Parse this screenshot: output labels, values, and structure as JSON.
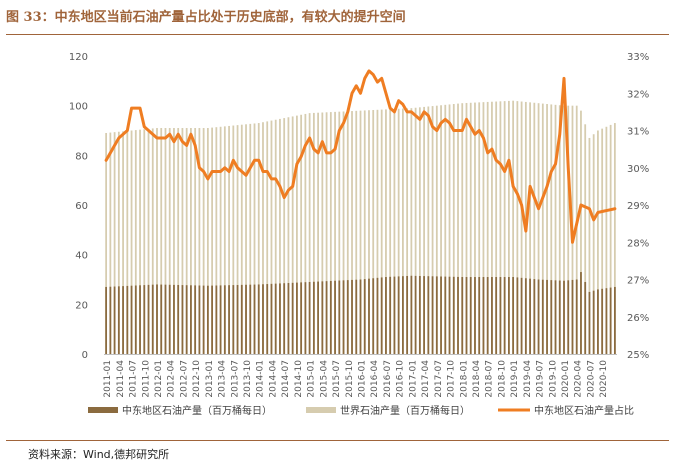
{
  "title": "图 33：中东地区当前石油产量占比处于历史底部，有较大的提升空间",
  "source": "资料来源：Wind,德邦研究所",
  "colors": {
    "title": "#a0643a",
    "middle_east": "#8b6b3f",
    "world": "#d6ccaf",
    "share": "#ef7d22",
    "axis_text": "#595959"
  },
  "chart_data": {
    "type": "bar+line",
    "title": "",
    "y_left": {
      "min": 0,
      "max": 120,
      "ticks": [
        0,
        20,
        40,
        60,
        80,
        100,
        120
      ]
    },
    "y_right": {
      "min": 25,
      "max": 33,
      "ticks": [
        "25%",
        "26%",
        "27%",
        "28%",
        "29%",
        "30%",
        "31%",
        "32%",
        "33%"
      ]
    },
    "tick_labels": [
      "2011-01",
      "2011-04",
      "2011-07",
      "2011-10",
      "2012-01",
      "2012-04",
      "2012-07",
      "2012-10",
      "2013-01",
      "2013-04",
      "2013-07",
      "2013-10",
      "2014-01",
      "2014-04",
      "2014-07",
      "2014-10",
      "2015-01",
      "2015-04",
      "2015-07",
      "2015-10",
      "2016-01",
      "2016-04",
      "2016-07",
      "2016-10",
      "2017-01",
      "2017-04",
      "2017-07",
      "2017-10",
      "2018-01",
      "2018-04",
      "2018-07",
      "2018-10",
      "2019-01",
      "2019-04",
      "2019-07",
      "2019-10",
      "2020-01",
      "2020-04",
      "2020-07",
      "2020-10"
    ],
    "months": 121,
    "middle_east_anchors": [
      [
        0,
        27
      ],
      [
        12,
        28
      ],
      [
        24,
        27.5
      ],
      [
        36,
        28
      ],
      [
        48,
        29
      ],
      [
        60,
        30
      ],
      [
        66,
        31
      ],
      [
        72,
        31.5
      ],
      [
        84,
        31
      ],
      [
        96,
        31
      ],
      [
        102,
        30
      ],
      [
        108,
        29.5
      ],
      [
        111,
        30
      ],
      [
        112,
        33
      ],
      [
        114,
        25
      ],
      [
        116,
        26
      ],
      [
        120,
        27
      ]
    ],
    "world_anchors": [
      [
        0,
        89
      ],
      [
        6,
        90
      ],
      [
        12,
        91
      ],
      [
        24,
        91
      ],
      [
        36,
        93
      ],
      [
        48,
        97
      ],
      [
        60,
        98
      ],
      [
        72,
        99
      ],
      [
        84,
        101
      ],
      [
        96,
        102
      ],
      [
        102,
        101
      ],
      [
        108,
        100
      ],
      [
        111,
        100
      ],
      [
        112,
        98
      ],
      [
        114,
        87
      ],
      [
        116,
        90
      ],
      [
        120,
        93
      ]
    ],
    "share_anchors": [
      [
        0,
        30.2
      ],
      [
        3,
        30.8
      ],
      [
        5,
        31.0
      ],
      [
        6,
        31.6
      ],
      [
        8,
        31.6
      ],
      [
        9,
        31.1
      ],
      [
        10,
        31.0
      ],
      [
        12,
        30.8
      ],
      [
        14,
        30.8
      ],
      [
        15,
        30.9
      ],
      [
        16,
        30.7
      ],
      [
        17,
        30.9
      ],
      [
        18,
        30.7
      ],
      [
        19,
        30.6
      ],
      [
        20,
        30.9
      ],
      [
        21,
        30.6
      ],
      [
        22,
        30.0
      ],
      [
        23,
        29.9
      ],
      [
        24,
        29.7
      ],
      [
        25,
        29.9
      ],
      [
        27,
        29.9
      ],
      [
        28,
        30.0
      ],
      [
        29,
        29.9
      ],
      [
        30,
        30.2
      ],
      [
        31,
        30.0
      ],
      [
        33,
        29.8
      ],
      [
        34,
        30.0
      ],
      [
        35,
        30.2
      ],
      [
        36,
        30.2
      ],
      [
        37,
        29.9
      ],
      [
        38,
        29.9
      ],
      [
        39,
        29.7
      ],
      [
        40,
        29.7
      ],
      [
        41,
        29.5
      ],
      [
        42,
        29.2
      ],
      [
        43,
        29.4
      ],
      [
        44,
        29.5
      ],
      [
        45,
        30.1
      ],
      [
        46,
        30.3
      ],
      [
        47,
        30.6
      ],
      [
        48,
        30.8
      ],
      [
        49,
        30.5
      ],
      [
        50,
        30.4
      ],
      [
        51,
        30.7
      ],
      [
        52,
        30.4
      ],
      [
        53,
        30.4
      ],
      [
        54,
        30.5
      ],
      [
        55,
        31.0
      ],
      [
        56,
        31.2
      ],
      [
        57,
        31.5
      ],
      [
        58,
        32.0
      ],
      [
        59,
        32.2
      ],
      [
        60,
        32.0
      ],
      [
        61,
        32.4
      ],
      [
        62,
        32.6
      ],
      [
        63,
        32.5
      ],
      [
        64,
        32.3
      ],
      [
        65,
        32.4
      ],
      [
        66,
        32.0
      ],
      [
        67,
        31.6
      ],
      [
        68,
        31.5
      ],
      [
        69,
        31.8
      ],
      [
        70,
        31.7
      ],
      [
        71,
        31.5
      ],
      [
        72,
        31.5
      ],
      [
        74,
        31.3
      ],
      [
        75,
        31.5
      ],
      [
        76,
        31.4
      ],
      [
        77,
        31.1
      ],
      [
        78,
        31.0
      ],
      [
        79,
        31.2
      ],
      [
        80,
        31.3
      ],
      [
        81,
        31.2
      ],
      [
        82,
        31.0
      ],
      [
        84,
        31.0
      ],
      [
        85,
        31.3
      ],
      [
        86,
        31.1
      ],
      [
        87,
        30.9
      ],
      [
        88,
        31.0
      ],
      [
        89,
        30.8
      ],
      [
        90,
        30.4
      ],
      [
        91,
        30.5
      ],
      [
        92,
        30.2
      ],
      [
        93,
        30.1
      ],
      [
        94,
        29.9
      ],
      [
        95,
        30.2
      ],
      [
        96,
        29.5
      ],
      [
        97,
        29.3
      ],
      [
        98,
        29.0
      ],
      [
        99,
        28.3
      ],
      [
        100,
        29.5
      ],
      [
        101,
        29.2
      ],
      [
        102,
        28.9
      ],
      [
        103,
        29.2
      ],
      [
        104,
        29.5
      ],
      [
        105,
        29.9
      ],
      [
        106,
        30.1
      ],
      [
        107,
        30.9
      ],
      [
        108,
        32.4
      ],
      [
        109,
        30.0
      ],
      [
        110,
        28.0
      ],
      [
        111,
        28.5
      ],
      [
        112,
        29.0
      ],
      [
        114,
        28.9
      ],
      [
        115,
        28.6
      ],
      [
        116,
        28.8
      ],
      [
        120,
        28.9
      ]
    ],
    "legend": [
      "中东地区石油产量（百万桶每日）",
      "世界石油产量（百万桶每日）",
      "中东地区石油产量占比"
    ],
    "legend_position": "bottom"
  }
}
